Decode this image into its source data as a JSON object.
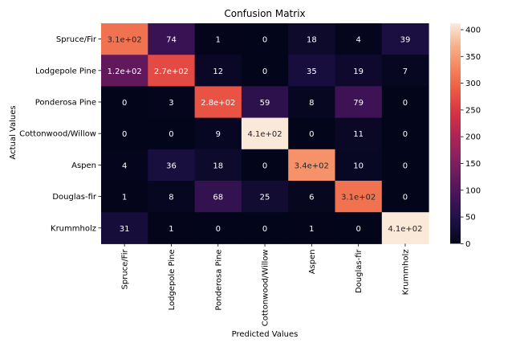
{
  "chart_data": {
    "type": "heatmap",
    "title": "Confusion Matrix",
    "xlabel": "Predicted Values",
    "ylabel": "Actual Values",
    "x_categories": [
      "Spruce/Fir",
      "Lodgepole Pine",
      "Ponderosa Pine",
      "Cottonwood/Willow",
      "Aspen",
      "Douglas-fir",
      "Krummholz"
    ],
    "y_categories": [
      "Spruce/Fir",
      "Lodgepole Pine",
      "Ponderosa Pine",
      "Cottonwood/Willow",
      "Aspen",
      "Douglas-fir",
      "Krummholz"
    ],
    "values": [
      [
        310,
        74,
        1,
        0,
        18,
        4,
        39
      ],
      [
        120,
        270,
        12,
        0,
        35,
        19,
        7
      ],
      [
        0,
        3,
        280,
        59,
        8,
        79,
        0
      ],
      [
        0,
        0,
        9,
        410,
        0,
        11,
        0
      ],
      [
        4,
        36,
        18,
        0,
        340,
        10,
        0
      ],
      [
        1,
        8,
        68,
        25,
        6,
        310,
        0
      ],
      [
        31,
        1,
        0,
        0,
        1,
        0,
        410
      ]
    ],
    "cell_labels": [
      [
        "3.1e+02",
        "74",
        "1",
        "0",
        "18",
        "4",
        "39"
      ],
      [
        "1.2e+02",
        "2.7e+02",
        "12",
        "0",
        "35",
        "19",
        "7"
      ],
      [
        "0",
        "3",
        "2.8e+02",
        "59",
        "8",
        "79",
        "0"
      ],
      [
        "0",
        "0",
        "9",
        "4.1e+02",
        "0",
        "11",
        "0"
      ],
      [
        "4",
        "36",
        "18",
        "0",
        "3.4e+02",
        "10",
        "0"
      ],
      [
        "1",
        "8",
        "68",
        "25",
        "6",
        "3.1e+02",
        "0"
      ],
      [
        "31",
        "1",
        "0",
        "0",
        "1",
        "0",
        "4.1e+02"
      ]
    ],
    "colorbar": {
      "range": [
        0,
        412
      ],
      "ticks": [
        0,
        50,
        100,
        150,
        200,
        250,
        300,
        350,
        400
      ],
      "tick_labels": [
        "0",
        "50",
        "100",
        "150",
        "200",
        "250",
        "300",
        "350",
        "400"
      ],
      "colormap": "rocket"
    },
    "grid": false
  }
}
